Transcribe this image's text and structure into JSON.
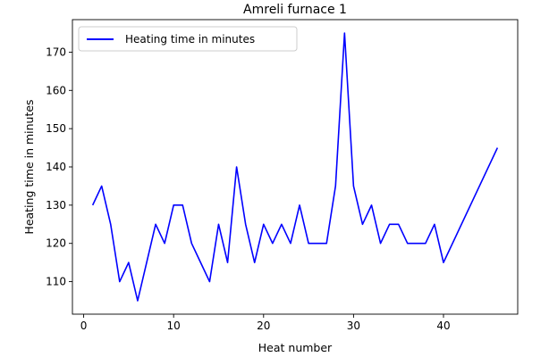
{
  "chart_data": {
    "type": "line",
    "title": "Amreli furnace 1",
    "xlabel": "Heat number",
    "ylabel": "Heating time in minutes",
    "xlim": [
      -1.25,
      48.25
    ],
    "ylim": [
      101.5,
      178.5
    ],
    "xticks": [
      0,
      10,
      20,
      30,
      40
    ],
    "yticks": [
      110,
      120,
      130,
      140,
      150,
      160,
      170
    ],
    "grid": false,
    "legend_position": "top-left",
    "series": [
      {
        "name": "Heating time in minutes",
        "color": "#0000ff",
        "x": [
          1,
          2,
          3,
          4,
          5,
          6,
          7,
          8,
          9,
          10,
          11,
          12,
          13,
          14,
          15,
          16,
          17,
          18,
          19,
          20,
          21,
          22,
          23,
          24,
          25,
          26,
          27,
          28,
          29,
          30,
          31,
          32,
          33,
          34,
          35,
          36,
          37,
          38,
          39,
          40,
          46
        ],
        "y": [
          130,
          135,
          125,
          110,
          115,
          105,
          115,
          125,
          120,
          130,
          130,
          120,
          115,
          110,
          125,
          115,
          140,
          125,
          115,
          125,
          120,
          125,
          120,
          130,
          120,
          120,
          120,
          135,
          175,
          135,
          125,
          130,
          120,
          125,
          125,
          120,
          120,
          120,
          125,
          115,
          145
        ]
      }
    ]
  }
}
